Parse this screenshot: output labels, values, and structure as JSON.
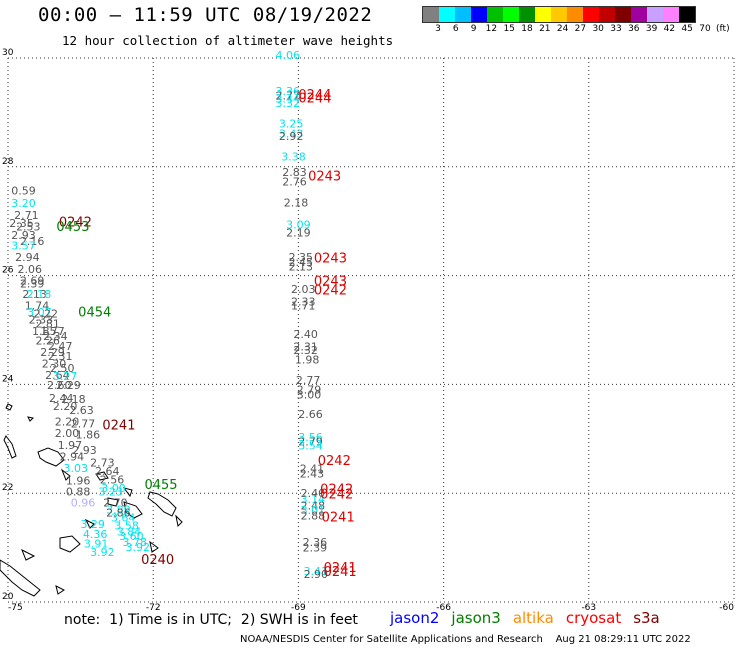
{
  "header": {
    "title": "00:00 – 11:59 UTC 08/19/2022",
    "subtitle": "12 hour collection of altimeter wave heights"
  },
  "colorbar": {
    "colors": [
      "#808080",
      "#00ffff",
      "#00bfff",
      "#0000ff",
      "#00c000",
      "#00ff00",
      "#009000",
      "#ffff00",
      "#ffc800",
      "#ff8c00",
      "#ff0000",
      "#c00000",
      "#800000",
      "#a000a0",
      "#c8a0ff",
      "#ff80ff",
      "#000000"
    ],
    "tick_labels": [
      "3",
      "6",
      "9",
      "12",
      "15",
      "18",
      "21",
      "24",
      "27",
      "30",
      "33",
      "36",
      "39",
      "42",
      "45",
      "70",
      "(ft)"
    ]
  },
  "note": "note:  1) Time is in UTC;  2) SWH is in feet",
  "legend": [
    {
      "label": "jason2",
      "color": "#0000ff"
    },
    {
      "label": "jason3",
      "color": "#008000"
    },
    {
      "label": "altika",
      "color": "#ff8c00"
    },
    {
      "label": "cryosat",
      "color": "#ff0000"
    },
    {
      "label": "s3a",
      "color": "#800000"
    }
  ],
  "credit": "NOAA/NESDIS Center for Satellite Applications and Research    Aug 21 08:29:11 UTC 2022",
  "chart_data": {
    "type": "scatter",
    "title": "12 hour collection of altimeter wave heights",
    "xlabel": "",
    "ylabel": "",
    "xlim": [
      -75,
      -60
    ],
    "ylim": [
      20,
      30
    ],
    "x_ticks": [
      "-75",
      "-72",
      "-69",
      "-66",
      "-63",
      "-60"
    ],
    "y_ticks": [
      "20",
      "22",
      "24",
      "26",
      "28",
      "30"
    ],
    "grid": true,
    "series": [
      {
        "name": "track near -69",
        "points": [
          {
            "lon": -69.22,
            "lat": 29.98,
            "label": "4.06",
            "color": "#00e5ee"
          },
          {
            "lon": -69.22,
            "lat": 29.32,
            "label": "3.36",
            "color": "#00e5ee"
          },
          {
            "lon": -69.22,
            "lat": 29.24,
            "label": "2.77",
            "color": "#555555"
          },
          {
            "lon": -69.22,
            "lat": 29.18,
            "label": "3.44",
            "color": "#00e5ee"
          },
          {
            "lon": -69.22,
            "lat": 29.1,
            "label": "3.32",
            "color": "#00e5ee"
          },
          {
            "lon": -69.15,
            "lat": 28.72,
            "label": "3.25",
            "color": "#00e5ee"
          },
          {
            "lon": -69.15,
            "lat": 28.54,
            "label": "3.43",
            "color": "#00e5ee"
          },
          {
            "lon": -69.15,
            "lat": 28.49,
            "label": "2.92",
            "color": "#555555"
          },
          {
            "lon": -69.1,
            "lat": 28.12,
            "label": "3.38",
            "color": "#00e5ee"
          },
          {
            "lon": -69.08,
            "lat": 27.83,
            "label": "2.83",
            "color": "#555555"
          },
          {
            "lon": -69.08,
            "lat": 27.66,
            "label": "2.76",
            "color": "#555555"
          },
          {
            "lon": -69.05,
            "lat": 27.27,
            "label": "2.18",
            "color": "#555555"
          },
          {
            "lon": -69.0,
            "lat": 26.87,
            "label": "3.09",
            "color": "#00e5ee"
          },
          {
            "lon": -69.0,
            "lat": 26.72,
            "label": "2.19",
            "color": "#555555"
          },
          {
            "lon": -68.95,
            "lat": 26.27,
            "label": "2.35",
            "color": "#555555"
          },
          {
            "lon": -68.95,
            "lat": 26.18,
            "label": "2.45",
            "color": "#555555"
          },
          {
            "lon": -68.95,
            "lat": 26.09,
            "label": "2.13",
            "color": "#555555"
          },
          {
            "lon": -68.9,
            "lat": 25.68,
            "label": "2.03",
            "color": "#555555"
          },
          {
            "lon": -68.9,
            "lat": 25.45,
            "label": "2.33",
            "color": "#555555"
          },
          {
            "lon": -68.9,
            "lat": 25.38,
            "label": "1.71",
            "color": "#555555"
          },
          {
            "lon": -68.85,
            "lat": 24.85,
            "label": "2.40",
            "color": "#555555"
          },
          {
            "lon": -68.85,
            "lat": 24.62,
            "label": "2.31",
            "color": "#555555"
          },
          {
            "lon": -68.85,
            "lat": 24.56,
            "label": "2.32",
            "color": "#555555"
          },
          {
            "lon": -68.82,
            "lat": 24.38,
            "label": "1.98",
            "color": "#555555"
          },
          {
            "lon": -68.8,
            "lat": 24.01,
            "label": "2.77",
            "color": "#555555"
          },
          {
            "lon": -68.78,
            "lat": 23.83,
            "label": "2.79",
            "color": "#555555"
          },
          {
            "lon": -68.78,
            "lat": 23.74,
            "label": "3.00",
            "color": "#555555"
          },
          {
            "lon": -68.75,
            "lat": 23.38,
            "label": "2.66",
            "color": "#555555"
          },
          {
            "lon": -68.75,
            "lat": 22.96,
            "label": "3.56",
            "color": "#00e5ee"
          },
          {
            "lon": -68.75,
            "lat": 22.88,
            "label": "2.79",
            "color": "#555555"
          },
          {
            "lon": -68.75,
            "lat": 22.8,
            "label": "3.54",
            "color": "#00e5ee"
          },
          {
            "lon": -68.72,
            "lat": 22.38,
            "label": "2.41",
            "color": "#555555"
          },
          {
            "lon": -68.72,
            "lat": 22.29,
            "label": "2.43",
            "color": "#555555"
          },
          {
            "lon": -68.7,
            "lat": 21.93,
            "label": "2.40",
            "color": "#555555"
          },
          {
            "lon": -68.7,
            "lat": 21.82,
            "label": "3.14",
            "color": "#00e5ee"
          },
          {
            "lon": -68.7,
            "lat": 21.7,
            "label": "2.48",
            "color": "#555555"
          },
          {
            "lon": -68.7,
            "lat": 21.62,
            "label": "3.01",
            "color": "#00e5ee"
          },
          {
            "lon": -68.7,
            "lat": 21.52,
            "label": "2.88",
            "color": "#555555"
          },
          {
            "lon": -68.66,
            "lat": 21.03,
            "label": "2.36",
            "color": "#555555"
          },
          {
            "lon": -68.66,
            "lat": 20.93,
            "label": "2.39",
            "color": "#555555"
          },
          {
            "lon": -68.64,
            "lat": 20.5,
            "label": "3.41",
            "color": "#00e5ee"
          },
          {
            "lon": -68.64,
            "lat": 20.44,
            "label": "2.90",
            "color": "#555555"
          }
        ]
      },
      {
        "name": "track near -74",
        "points": [
          {
            "lon": -74.68,
            "lat": 27.49,
            "label": "0.59",
            "color": "#555555"
          },
          {
            "lon": -74.68,
            "lat": 27.26,
            "label": "3.20",
            "color": "#00e5ee"
          },
          {
            "lon": -74.62,
            "lat": 27.04,
            "label": "2.71",
            "color": "#555555"
          },
          {
            "lon": -74.72,
            "lat": 26.89,
            "label": "2.35",
            "color": "#555555"
          },
          {
            "lon": -74.58,
            "lat": 26.83,
            "label": "2.53",
            "color": "#555555"
          },
          {
            "lon": -74.68,
            "lat": 26.67,
            "label": "2.93",
            "color": "#555555"
          },
          {
            "lon": -74.5,
            "lat": 26.56,
            "label": "2.16",
            "color": "#555555"
          },
          {
            "lon": -74.68,
            "lat": 26.48,
            "label": "3.57",
            "color": "#00e5ee"
          },
          {
            "lon": -74.6,
            "lat": 26.27,
            "label": "2.94",
            "color": "#555555"
          },
          {
            "lon": -74.55,
            "lat": 26.05,
            "label": "2.06",
            "color": "#555555"
          },
          {
            "lon": -74.5,
            "lat": 25.84,
            "label": "2.69",
            "color": "#555555"
          },
          {
            "lon": -74.5,
            "lat": 25.78,
            "label": "2.39",
            "color": "#555555"
          },
          {
            "lon": -74.45,
            "lat": 25.59,
            "label": "2.13",
            "color": "#555555"
          },
          {
            "lon": -74.36,
            "lat": 25.59,
            "label": "2.18",
            "color": "#00e5ee"
          },
          {
            "lon": -74.4,
            "lat": 25.38,
            "label": "1.74",
            "color": "#555555"
          },
          {
            "lon": -74.35,
            "lat": 25.26,
            "label": "3.07",
            "color": "#00e5ee"
          },
          {
            "lon": -74.22,
            "lat": 25.23,
            "label": "2.22",
            "color": "#555555"
          },
          {
            "lon": -74.32,
            "lat": 25.12,
            "label": "2.33",
            "color": "#555555"
          },
          {
            "lon": -74.18,
            "lat": 25.05,
            "label": "2.81",
            "color": "#555555"
          },
          {
            "lon": -74.25,
            "lat": 24.91,
            "label": "1.85",
            "color": "#555555"
          },
          {
            "lon": -74.08,
            "lat": 24.91,
            "label": "1.77",
            "color": "#555555"
          },
          {
            "lon": -74.18,
            "lat": 24.73,
            "label": "2.26",
            "color": "#555555"
          },
          {
            "lon": -74.02,
            "lat": 24.82,
            "label": "2.34",
            "color": "#555555"
          },
          {
            "lon": -73.92,
            "lat": 24.63,
            "label": "2.47",
            "color": "#555555"
          },
          {
            "lon": -74.08,
            "lat": 24.52,
            "label": "2.29",
            "color": "#555555"
          },
          {
            "lon": -73.92,
            "lat": 24.45,
            "label": "2.31",
            "color": "#555555"
          },
          {
            "lon": -74.05,
            "lat": 24.31,
            "label": "2.30",
            "color": "#555555"
          },
          {
            "lon": -73.88,
            "lat": 24.23,
            "label": "2.50",
            "color": "#555555"
          },
          {
            "lon": -73.98,
            "lat": 24.1,
            "label": "2.64",
            "color": "#555555"
          },
          {
            "lon": -73.82,
            "lat": 24.08,
            "label": "3.27",
            "color": "#00e5ee"
          },
          {
            "lon": -73.94,
            "lat": 23.92,
            "label": "2.60",
            "color": "#555555"
          },
          {
            "lon": -73.75,
            "lat": 23.92,
            "label": "2.29",
            "color": "#555555"
          },
          {
            "lon": -73.9,
            "lat": 23.68,
            "label": "2.44",
            "color": "#555555"
          },
          {
            "lon": -73.65,
            "lat": 23.66,
            "label": "2.18",
            "color": "#555555"
          },
          {
            "lon": -73.82,
            "lat": 23.53,
            "label": "2.20",
            "color": "#555555"
          },
          {
            "lon": -73.48,
            "lat": 23.46,
            "label": "2.63",
            "color": "#555555"
          },
          {
            "lon": -73.78,
            "lat": 23.24,
            "label": "2.20",
            "color": "#555555"
          },
          {
            "lon": -73.45,
            "lat": 23.21,
            "label": "2.77",
            "color": "#555555"
          },
          {
            "lon": -73.78,
            "lat": 23.03,
            "label": "2.00",
            "color": "#555555"
          },
          {
            "lon": -73.35,
            "lat": 23.01,
            "label": "1.86",
            "color": "#555555"
          },
          {
            "lon": -73.72,
            "lat": 22.81,
            "label": "1.97",
            "color": "#555555"
          },
          {
            "lon": -73.42,
            "lat": 22.72,
            "label": "2.93",
            "color": "#555555"
          },
          {
            "lon": -73.68,
            "lat": 22.6,
            "label": "2.94",
            "color": "#555555"
          },
          {
            "lon": -73.05,
            "lat": 22.49,
            "label": "2.73",
            "color": "#555555"
          },
          {
            "lon": -73.6,
            "lat": 22.39,
            "label": "3.03",
            "color": "#00e5ee"
          },
          {
            "lon": -72.95,
            "lat": 22.33,
            "label": "2.64",
            "color": "#555555"
          },
          {
            "lon": -73.55,
            "lat": 22.16,
            "label": "1.96",
            "color": "#555555"
          },
          {
            "lon": -72.85,
            "lat": 22.18,
            "label": "2.56",
            "color": "#555555"
          },
          {
            "lon": -72.82,
            "lat": 22.02,
            "label": "3.00",
            "color": "#00e5ee"
          },
          {
            "lon": -73.55,
            "lat": 21.96,
            "label": "0.88",
            "color": "#555555"
          },
          {
            "lon": -72.88,
            "lat": 21.96,
            "label": "3.23",
            "color": "#00e5ee"
          },
          {
            "lon": -73.45,
            "lat": 21.76,
            "label": "0.96",
            "color": "#b0b0ff"
          },
          {
            "lon": -72.78,
            "lat": 21.76,
            "label": "2.70",
            "color": "#555555"
          },
          {
            "lon": -72.72,
            "lat": 21.63,
            "label": "3.89",
            "color": "#00e5ee"
          },
          {
            "lon": -72.72,
            "lat": 21.57,
            "label": "2.86",
            "color": "#555555"
          },
          {
            "lon": -72.62,
            "lat": 21.48,
            "label": "3.64",
            "color": "#00e5ee"
          },
          {
            "lon": -73.25,
            "lat": 21.36,
            "label": "3.29",
            "color": "#00e5ee"
          },
          {
            "lon": -72.55,
            "lat": 21.33,
            "label": "3.58",
            "color": "#00e5ee"
          },
          {
            "lon": -72.5,
            "lat": 21.22,
            "label": "3.84",
            "color": "#00e5ee"
          },
          {
            "lon": -73.2,
            "lat": 21.18,
            "label": "4.36",
            "color": "#00e5ee"
          },
          {
            "lon": -72.45,
            "lat": 21.14,
            "label": "3.60",
            "color": "#00e5ee"
          },
          {
            "lon": -72.38,
            "lat": 21.03,
            "label": "3.78",
            "color": "#00e5ee"
          },
          {
            "lon": -73.18,
            "lat": 21.0,
            "label": "3.91",
            "color": "#00e5ee"
          },
          {
            "lon": -72.32,
            "lat": 20.94,
            "label": "3.92",
            "color": "#00e5ee"
          },
          {
            "lon": -73.05,
            "lat": 20.85,
            "label": "3.92",
            "color": "#00e5ee"
          }
        ]
      }
    ],
    "pass_labels": [
      {
        "lon": -69.0,
        "lat": 29.25,
        "label": "0244",
        "color": "#dd0000"
      },
      {
        "lon": -69.0,
        "lat": 29.18,
        "label": "0244",
        "color": "#dd0000"
      },
      {
        "lon": -68.8,
        "lat": 27.75,
        "label": "0243",
        "color": "#dd0000"
      },
      {
        "lon": -68.68,
        "lat": 26.24,
        "label": "0243",
        "color": "#dd0000"
      },
      {
        "lon": -68.68,
        "lat": 25.82,
        "label": "0243",
        "color": "#dd0000"
      },
      {
        "lon": -68.68,
        "lat": 25.65,
        "label": "0242",
        "color": "#dd0000"
      },
      {
        "lon": -68.6,
        "lat": 22.52,
        "label": "0242",
        "color": "#dd0000"
      },
      {
        "lon": -68.55,
        "lat": 21.99,
        "label": "0242",
        "color": "#dd0000"
      },
      {
        "lon": -68.55,
        "lat": 21.9,
        "label": "0242",
        "color": "#dd0000"
      },
      {
        "lon": -68.52,
        "lat": 21.48,
        "label": "0241",
        "color": "#dd0000"
      },
      {
        "lon": -68.48,
        "lat": 20.55,
        "label": "0241",
        "color": "#dd0000"
      },
      {
        "lon": -68.48,
        "lat": 20.48,
        "label": "0241",
        "color": "#dd0000"
      },
      {
        "lon": -73.95,
        "lat": 26.9,
        "label": "0242",
        "color": "#800000"
      },
      {
        "lon": -73.05,
        "lat": 23.17,
        "label": "0241",
        "color": "#800000"
      },
      {
        "lon": -72.25,
        "lat": 20.7,
        "label": "0240",
        "color": "#800000"
      },
      {
        "lon": -74.0,
        "lat": 26.82,
        "label": "0453",
        "color": "#008000"
      },
      {
        "lon": -73.55,
        "lat": 25.25,
        "label": "0454",
        "color": "#008000"
      },
      {
        "lon": -72.18,
        "lat": 22.08,
        "label": "0455",
        "color": "#008000"
      }
    ]
  }
}
